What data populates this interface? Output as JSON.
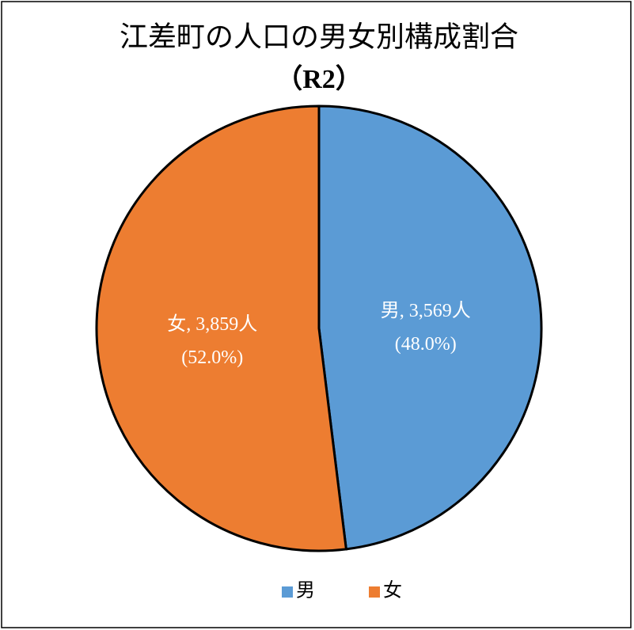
{
  "chart_data": {
    "type": "pie",
    "title": "江差町の人口の男女別構成割合",
    "subtitle": "（R2）",
    "categories": [
      "男",
      "女"
    ],
    "values": [
      3569,
      3859
    ],
    "value_labels": [
      "男, 3,569人",
      "女, 3,859人"
    ],
    "percentages": [
      48.0,
      52.0
    ],
    "percentage_labels": [
      "(48.0%)",
      "(52.0%)"
    ],
    "colors": [
      "#5b9bd5",
      "#ed7d31"
    ],
    "legend": "bottom"
  }
}
